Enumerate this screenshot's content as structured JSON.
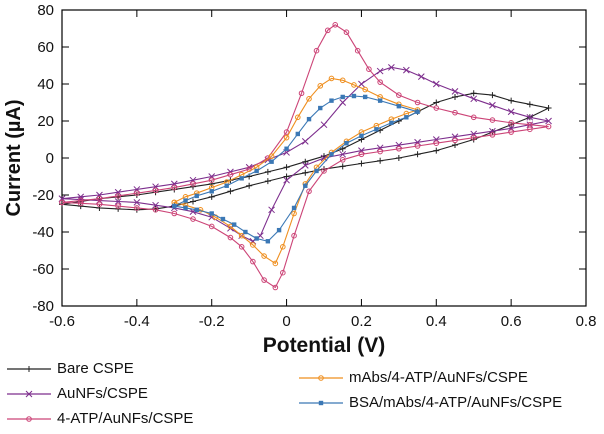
{
  "chart_data": {
    "type": "line",
    "subtype": "cyclic-voltammogram",
    "title": "",
    "xlabel": "Potential (V)",
    "ylabel": "Current (µA)",
    "xlim": [
      -0.6,
      0.8
    ],
    "ylim": [
      -80,
      80
    ],
    "xticks": [
      -0.6,
      -0.4,
      -0.2,
      0,
      0.2,
      0.4,
      0.6,
      0.8
    ],
    "xtick_labels": [
      "-0.6",
      "-0.4",
      "-0.2",
      "0",
      "0.2",
      "0.4",
      "0.6",
      "0.8"
    ],
    "yticks": [
      -80,
      -60,
      -40,
      -20,
      0,
      20,
      40,
      60,
      80
    ],
    "ytick_labels": [
      "-80",
      "-60",
      "-40",
      "-20",
      "0",
      "20",
      "40",
      "60",
      "80"
    ],
    "grid": false,
    "legend_position": "below",
    "axis_color": "#000000",
    "text_color": "#111111",
    "series": [
      {
        "name": "Bare CSPE",
        "color": "#222222",
        "marker": "plus",
        "points": [
          [
            -0.6,
            -25
          ],
          [
            -0.55,
            -23.5
          ],
          [
            -0.5,
            -22
          ],
          [
            -0.45,
            -21
          ],
          [
            -0.4,
            -20
          ],
          [
            -0.35,
            -18.5
          ],
          [
            -0.3,
            -17
          ],
          [
            -0.25,
            -15.5
          ],
          [
            -0.2,
            -14
          ],
          [
            -0.15,
            -12
          ],
          [
            -0.1,
            -10
          ],
          [
            -0.05,
            -7.5
          ],
          [
            0,
            -5
          ],
          [
            0.05,
            -2
          ],
          [
            0.1,
            1
          ],
          [
            0.15,
            5
          ],
          [
            0.2,
            10
          ],
          [
            0.25,
            15
          ],
          [
            0.3,
            20
          ],
          [
            0.35,
            25
          ],
          [
            0.4,
            30
          ],
          [
            0.45,
            33
          ],
          [
            0.5,
            35
          ],
          [
            0.55,
            34
          ],
          [
            0.6,
            31
          ],
          [
            0.65,
            29
          ],
          [
            0.7,
            27
          ],
          [
            0.65,
            22
          ],
          [
            0.6,
            18
          ],
          [
            0.55,
            14
          ],
          [
            0.5,
            10
          ],
          [
            0.45,
            7
          ],
          [
            0.4,
            4
          ],
          [
            0.35,
            2
          ],
          [
            0.3,
            0
          ],
          [
            0.25,
            -1.5
          ],
          [
            0.2,
            -3
          ],
          [
            0.15,
            -4.5
          ],
          [
            0.1,
            -6
          ],
          [
            0.05,
            -8
          ],
          [
            0,
            -10
          ],
          [
            -0.05,
            -12.5
          ],
          [
            -0.1,
            -15
          ],
          [
            -0.15,
            -18
          ],
          [
            -0.2,
            -21
          ],
          [
            -0.25,
            -23.5
          ],
          [
            -0.3,
            -26
          ],
          [
            -0.35,
            -27.5
          ],
          [
            -0.4,
            -28
          ],
          [
            -0.45,
            -27.5
          ],
          [
            -0.5,
            -27
          ],
          [
            -0.55,
            -26
          ],
          [
            -0.6,
            -25
          ]
        ]
      },
      {
        "name": "AuNFs/CSPE",
        "color": "#7d2e8d",
        "marker": "x",
        "points": [
          [
            -0.6,
            -22
          ],
          [
            -0.55,
            -21
          ],
          [
            -0.5,
            -20
          ],
          [
            -0.45,
            -18.5
          ],
          [
            -0.4,
            -17
          ],
          [
            -0.35,
            -15.5
          ],
          [
            -0.3,
            -14
          ],
          [
            -0.25,
            -12
          ],
          [
            -0.2,
            -10
          ],
          [
            -0.15,
            -7.5
          ],
          [
            -0.1,
            -5
          ],
          [
            -0.05,
            -1
          ],
          [
            0,
            3
          ],
          [
            0.05,
            9
          ],
          [
            0.1,
            18
          ],
          [
            0.15,
            30
          ],
          [
            0.2,
            40
          ],
          [
            0.25,
            47
          ],
          [
            0.28,
            49
          ],
          [
            0.32,
            47.5
          ],
          [
            0.36,
            44
          ],
          [
            0.4,
            40
          ],
          [
            0.45,
            36
          ],
          [
            0.5,
            32
          ],
          [
            0.55,
            28.5
          ],
          [
            0.6,
            25
          ],
          [
            0.65,
            22
          ],
          [
            0.7,
            20
          ],
          [
            0.65,
            18
          ],
          [
            0.6,
            16
          ],
          [
            0.55,
            14.5
          ],
          [
            0.5,
            13
          ],
          [
            0.45,
            11.5
          ],
          [
            0.4,
            10
          ],
          [
            0.35,
            8.5
          ],
          [
            0.3,
            7
          ],
          [
            0.25,
            5.5
          ],
          [
            0.2,
            4
          ],
          [
            0.15,
            2
          ],
          [
            0.1,
            0
          ],
          [
            0.05,
            -4
          ],
          [
            0,
            -12
          ],
          [
            -0.04,
            -28
          ],
          [
            -0.07,
            -42
          ],
          [
            -0.09,
            -45
          ],
          [
            -0.12,
            -42
          ],
          [
            -0.15,
            -38
          ],
          [
            -0.2,
            -32
          ],
          [
            -0.25,
            -29
          ],
          [
            -0.3,
            -27
          ],
          [
            -0.35,
            -25.5
          ],
          [
            -0.4,
            -24
          ],
          [
            -0.45,
            -23.5
          ],
          [
            -0.5,
            -23
          ],
          [
            -0.55,
            -22.5
          ],
          [
            -0.6,
            -22
          ]
        ]
      },
      {
        "name": "4-ATP/AuNFs/CSPE",
        "color": "#cc4477",
        "marker": "circle",
        "points": [
          [
            -0.6,
            -24
          ],
          [
            -0.55,
            -23
          ],
          [
            -0.5,
            -22
          ],
          [
            -0.45,
            -20.5
          ],
          [
            -0.4,
            -19
          ],
          [
            -0.35,
            -17.5
          ],
          [
            -0.3,
            -16
          ],
          [
            -0.25,
            -14
          ],
          [
            -0.2,
            -12
          ],
          [
            -0.15,
            -9
          ],
          [
            -0.1,
            -6
          ],
          [
            -0.05,
            0
          ],
          [
            0,
            14
          ],
          [
            0.04,
            35
          ],
          [
            0.08,
            58
          ],
          [
            0.11,
            69
          ],
          [
            0.13,
            72
          ],
          [
            0.16,
            68
          ],
          [
            0.19,
            58
          ],
          [
            0.22,
            48
          ],
          [
            0.25,
            41
          ],
          [
            0.3,
            34
          ],
          [
            0.35,
            30
          ],
          [
            0.4,
            27
          ],
          [
            0.45,
            24.5
          ],
          [
            0.5,
            22
          ],
          [
            0.55,
            20.5
          ],
          [
            0.6,
            19
          ],
          [
            0.65,
            18
          ],
          [
            0.7,
            17
          ],
          [
            0.65,
            15.5
          ],
          [
            0.6,
            14
          ],
          [
            0.55,
            12.5
          ],
          [
            0.5,
            11
          ],
          [
            0.45,
            9.5
          ],
          [
            0.4,
            8
          ],
          [
            0.35,
            6.5
          ],
          [
            0.3,
            5
          ],
          [
            0.25,
            3.5
          ],
          [
            0.2,
            2
          ],
          [
            0.15,
            -1
          ],
          [
            0.1,
            -7
          ],
          [
            0.06,
            -18
          ],
          [
            0.02,
            -42
          ],
          [
            -0.01,
            -62
          ],
          [
            -0.03,
            -70
          ],
          [
            -0.06,
            -66
          ],
          [
            -0.09,
            -56
          ],
          [
            -0.12,
            -48
          ],
          [
            -0.15,
            -43
          ],
          [
            -0.2,
            -37
          ],
          [
            -0.25,
            -33
          ],
          [
            -0.3,
            -30
          ],
          [
            -0.35,
            -28
          ],
          [
            -0.4,
            -27
          ],
          [
            -0.45,
            -26
          ],
          [
            -0.5,
            -25
          ],
          [
            -0.55,
            -24.5
          ],
          [
            -0.6,
            -24
          ]
        ]
      },
      {
        "name": "mAbs/4-ATP/AuNFs/CSPE",
        "color": "#ef8f1f",
        "marker": "circle",
        "points": [
          [
            -0.3,
            -24
          ],
          [
            -0.27,
            -21
          ],
          [
            -0.24,
            -19
          ],
          [
            -0.2,
            -16
          ],
          [
            -0.16,
            -13
          ],
          [
            -0.12,
            -9
          ],
          [
            -0.08,
            -5
          ],
          [
            -0.04,
            1
          ],
          [
            0,
            11
          ],
          [
            0.03,
            22
          ],
          [
            0.06,
            32
          ],
          [
            0.09,
            39
          ],
          [
            0.12,
            43
          ],
          [
            0.15,
            42
          ],
          [
            0.18,
            39.5
          ],
          [
            0.21,
            37
          ],
          [
            0.25,
            33
          ],
          [
            0.3,
            29
          ],
          [
            0.35,
            26
          ],
          [
            0.32,
            24
          ],
          [
            0.28,
            21
          ],
          [
            0.24,
            17.5
          ],
          [
            0.2,
            14
          ],
          [
            0.16,
            9
          ],
          [
            0.12,
            3
          ],
          [
            0.08,
            -5
          ],
          [
            0.05,
            -14
          ],
          [
            0.02,
            -30
          ],
          [
            -0.01,
            -48
          ],
          [
            -0.03,
            -57
          ],
          [
            -0.06,
            -53
          ],
          [
            -0.09,
            -47
          ],
          [
            -0.12,
            -42
          ],
          [
            -0.15,
            -37
          ],
          [
            -0.19,
            -32
          ],
          [
            -0.23,
            -28
          ],
          [
            -0.27,
            -25.5
          ],
          [
            -0.3,
            -24
          ]
        ]
      },
      {
        "name": "BSA/mAbs/4-ATP/AuNFs/CSPE",
        "color": "#3b78b5",
        "marker": "square",
        "points": [
          [
            -0.3,
            -26
          ],
          [
            -0.27,
            -23
          ],
          [
            -0.24,
            -20.5
          ],
          [
            -0.2,
            -18
          ],
          [
            -0.16,
            -15
          ],
          [
            -0.12,
            -11
          ],
          [
            -0.08,
            -7
          ],
          [
            -0.04,
            -2
          ],
          [
            0,
            5
          ],
          [
            0.03,
            13
          ],
          [
            0.06,
            21
          ],
          [
            0.09,
            27
          ],
          [
            0.12,
            31
          ],
          [
            0.15,
            33
          ],
          [
            0.18,
            33.5
          ],
          [
            0.21,
            33
          ],
          [
            0.25,
            31
          ],
          [
            0.3,
            28
          ],
          [
            0.35,
            25
          ],
          [
            0.32,
            22
          ],
          [
            0.28,
            19
          ],
          [
            0.24,
            15.5
          ],
          [
            0.2,
            12
          ],
          [
            0.16,
            8
          ],
          [
            0.12,
            2
          ],
          [
            0.08,
            -7
          ],
          [
            0.05,
            -15
          ],
          [
            0.02,
            -27
          ],
          [
            -0.02,
            -39
          ],
          [
            -0.05,
            -45
          ],
          [
            -0.08,
            -43.5
          ],
          [
            -0.11,
            -40
          ],
          [
            -0.14,
            -36
          ],
          [
            -0.17,
            -33
          ],
          [
            -0.2,
            -30
          ],
          [
            -0.24,
            -28
          ],
          [
            -0.27,
            -27
          ],
          [
            -0.3,
            -26
          ]
        ]
      }
    ],
    "legend_columns": [
      [
        0,
        1,
        2
      ],
      [
        3,
        4
      ]
    ]
  }
}
